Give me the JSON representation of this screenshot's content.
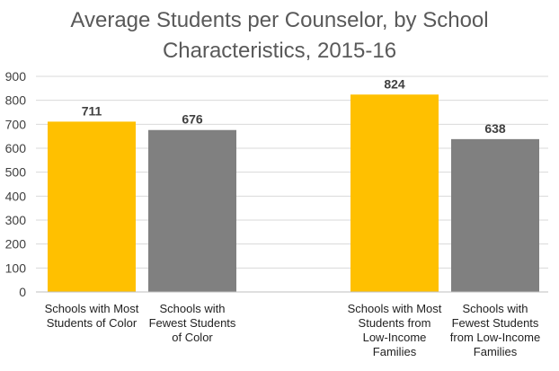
{
  "chart_data": {
    "type": "bar",
    "title_lines": [
      "Average Students per Counselor, by School",
      "Characteristics, 2015-16"
    ],
    "categories": [
      [
        "Schools with Most",
        "Students of Color"
      ],
      [
        "Schools with",
        "Fewest Students",
        "of Color"
      ],
      [
        "Schools with Most",
        "Students from",
        "Low-Income",
        "Families"
      ],
      [
        "Schools with",
        "Fewest Students",
        "from Low-Income",
        "Families"
      ]
    ],
    "values": [
      711,
      676,
      824,
      638
    ],
    "data_labels": [
      "711",
      "676",
      "824",
      "638"
    ],
    "bar_colors": [
      "#FFC000",
      "#808080",
      "#FFC000",
      "#808080"
    ],
    "ylim": [
      0,
      900
    ],
    "yticks": [
      0,
      100,
      200,
      300,
      400,
      500,
      600,
      700,
      800,
      900
    ],
    "ytick_labels": [
      "0",
      "100",
      "200",
      "300",
      "400",
      "500",
      "600",
      "700",
      "800",
      "900"
    ],
    "grid": true,
    "legend": "none"
  }
}
